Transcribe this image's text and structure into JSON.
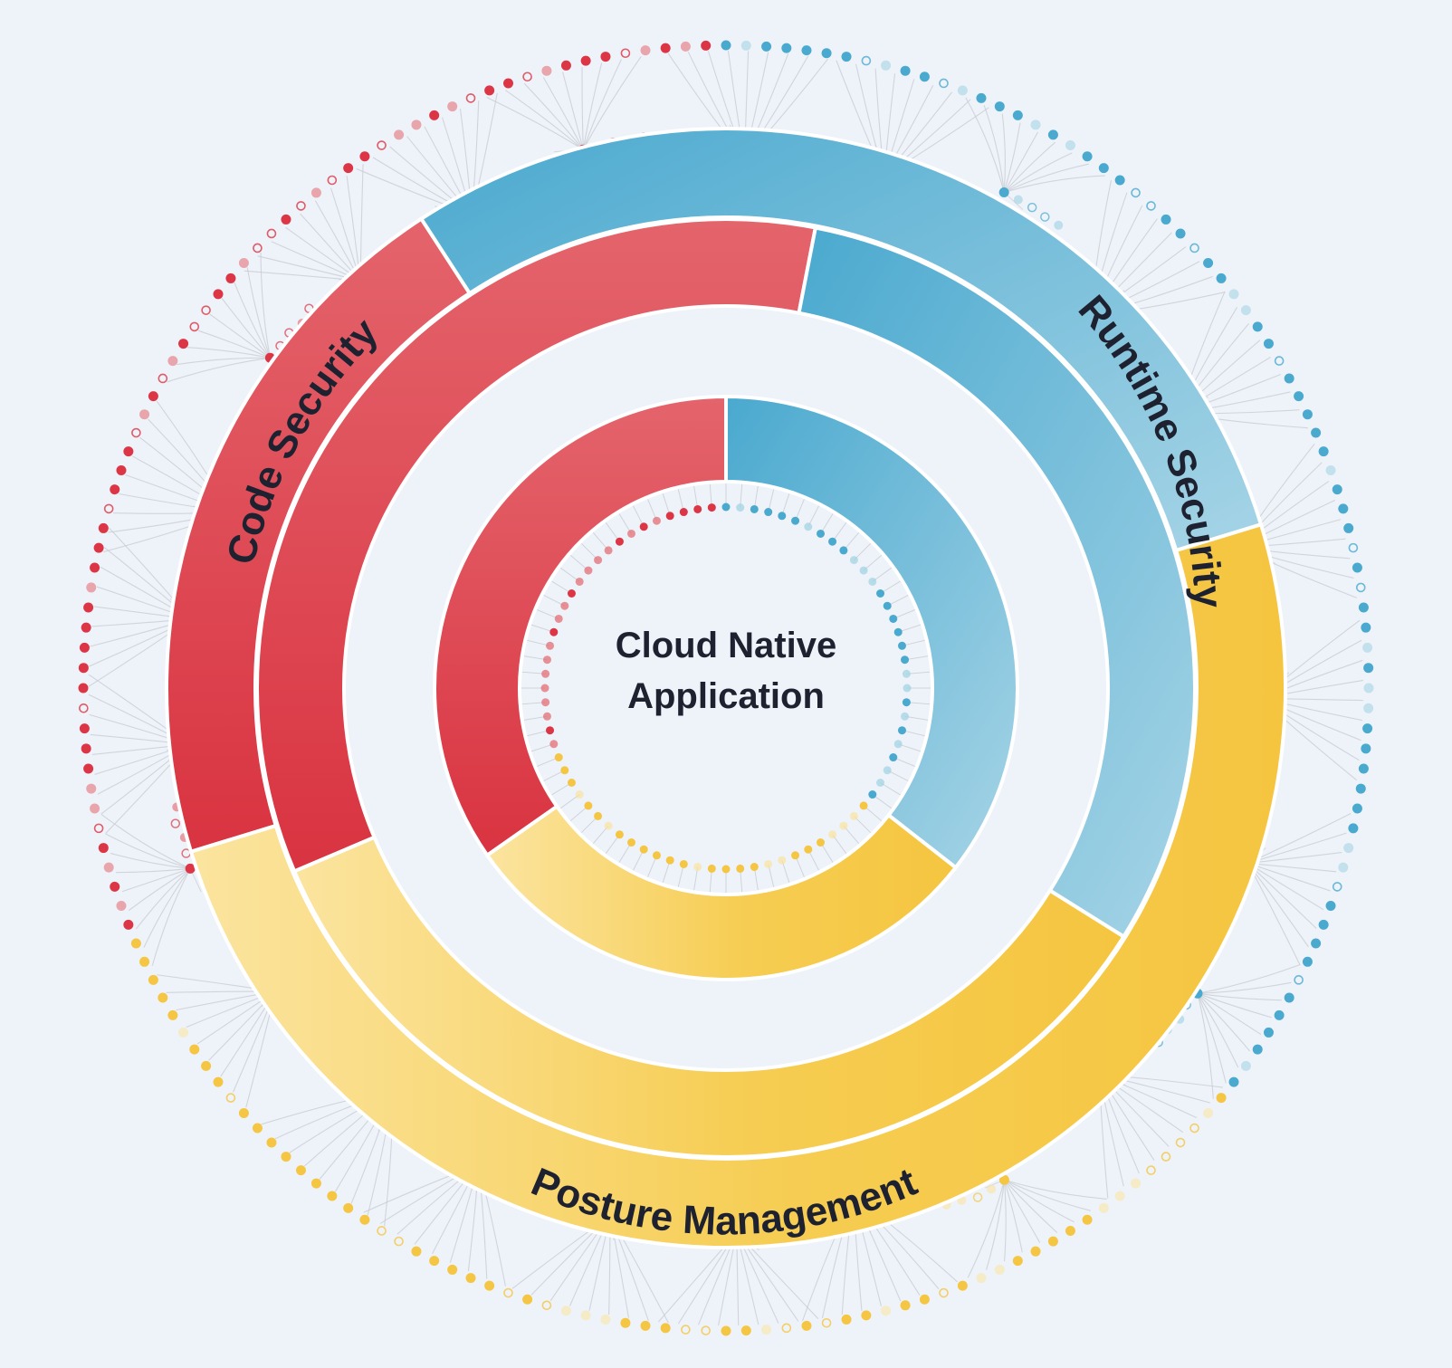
{
  "diagram": {
    "center_title_line1": "Cloud Native",
    "center_title_line2": "Application",
    "colors": {
      "background": "#eef3f9",
      "red": "#dc3545",
      "red_light": "#e4646c",
      "blue": "#4aa9cf",
      "blue_light": "#9fd1e3",
      "yellow": "#f5c644",
      "yellow_light": "#fbe39e",
      "text": "#1e2230",
      "connector": "#c9ccd3"
    },
    "segments": [
      {
        "name": "Code Security",
        "color_key": "red"
      },
      {
        "name": "Runtime Security",
        "color_key": "blue"
      },
      {
        "name": "Posture Management",
        "color_key": "yellow"
      }
    ]
  }
}
